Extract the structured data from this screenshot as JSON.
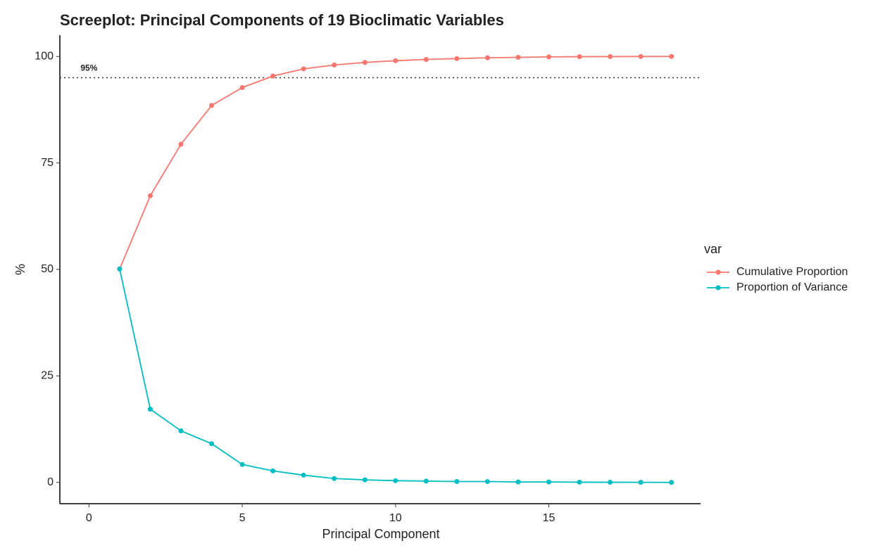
{
  "chart_data": {
    "type": "line",
    "title": "Screeplot: Principal Components of 19 Bioclimatic Variables",
    "x_label": "Principal Component",
    "y_label": "%",
    "x": [
      1,
      2,
      3,
      4,
      5,
      6,
      7,
      8,
      9,
      10,
      11,
      12,
      13,
      14,
      15,
      16,
      17,
      18,
      19
    ],
    "series": [
      {
        "name": "Cumulative Proportion",
        "color": "#F8766D",
        "values": [
          50.1,
          67.3,
          79.4,
          88.5,
          92.7,
          95.4,
          97.1,
          98.0,
          98.6,
          99.0,
          99.3,
          99.5,
          99.7,
          99.8,
          99.9,
          99.95,
          99.97,
          99.99,
          100
        ]
      },
      {
        "name": "Proportion of Variance",
        "color": "#00BFC4",
        "values": [
          50.1,
          17.2,
          12.1,
          9.1,
          4.2,
          2.7,
          1.7,
          0.9,
          0.6,
          0.4,
          0.3,
          0.2,
          0.2,
          0.1,
          0.1,
          0.05,
          0.03,
          0.02,
          0.0
        ]
      }
    ],
    "hline": {
      "value": 95,
      "label": "95%",
      "x": 0
    },
    "legend_title": "var",
    "legend_position": "right",
    "grid": false,
    "xlim": [
      -0.95,
      19.95
    ],
    "xticks": [
      0,
      5,
      10,
      15
    ],
    "ylim": [
      -5,
      105
    ],
    "yticks": [
      0,
      25,
      50,
      75,
      100
    ]
  }
}
